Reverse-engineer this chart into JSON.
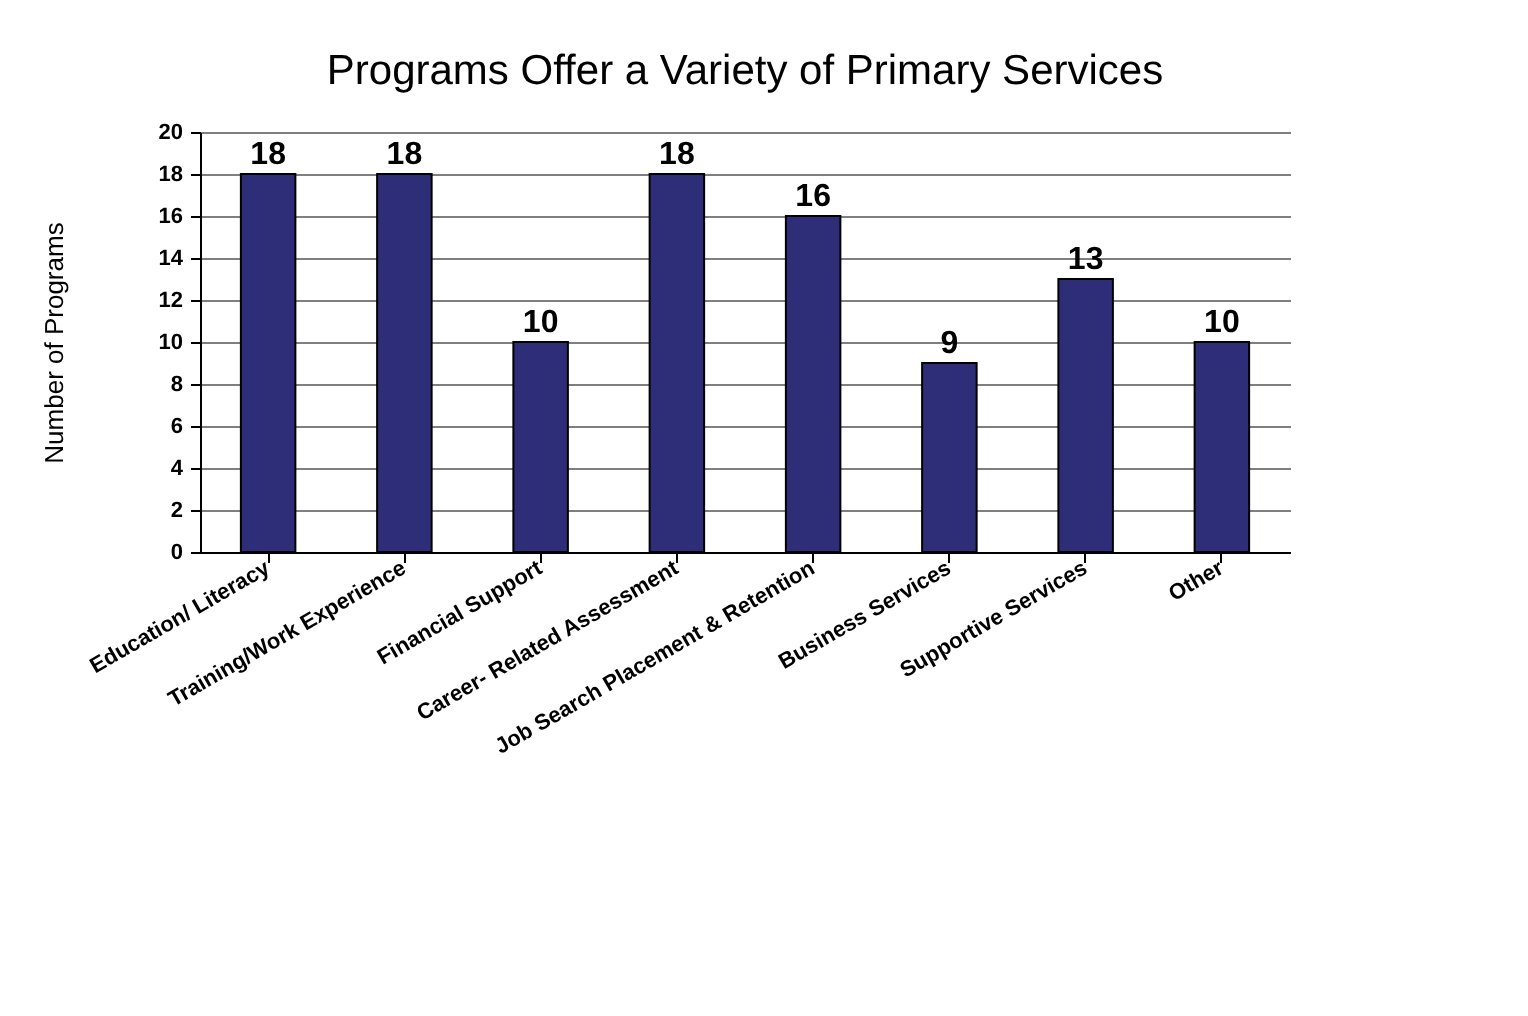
{
  "chart_data": {
    "type": "bar",
    "title": "Programs Offer a Variety of Primary Services",
    "ylabel": "Number of Programs",
    "categories": [
      "Education/ Literacy",
      "Training/Work Experience",
      "Financial Support",
      "Career- Related Assessment",
      "Job Search Placement & Retention",
      "Business Services",
      "Supportive Services",
      "Other"
    ],
    "values": [
      18,
      18,
      10,
      18,
      16,
      9,
      13,
      10
    ],
    "color": "#2e2e78",
    "ylim": [
      0,
      20
    ],
    "yticks": [
      0,
      2,
      4,
      6,
      8,
      10,
      12,
      14,
      16,
      18,
      20
    ],
    "grid": "y",
    "data_labels": true
  }
}
